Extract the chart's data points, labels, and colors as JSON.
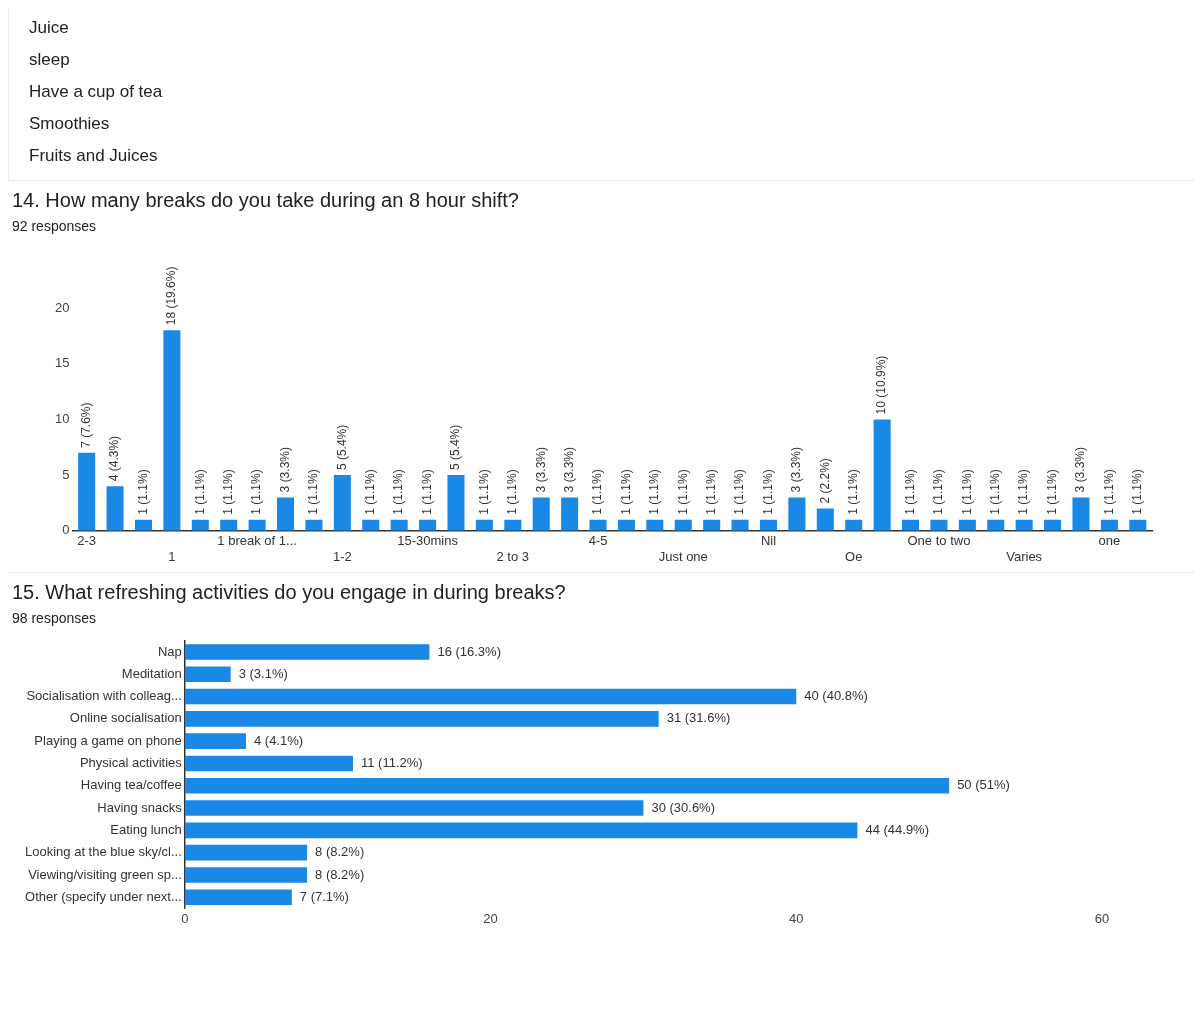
{
  "chart_data": [
    {
      "type": "other",
      "annotations": [
        "Juice",
        "sleep",
        "Have a cup of tea",
        "Smoothies",
        "Fruits and Juices"
      ]
    },
    {
      "type": "bar",
      "title": "14. How many breaks do you take during an 8 hour shift?",
      "subtitle": "92 responses",
      "categories": [
        "2-3",
        null,
        null,
        "1",
        null,
        null,
        "1 break of 1...",
        null,
        null,
        "1-2",
        null,
        null,
        "15-30mins",
        null,
        null,
        "2 to 3",
        null,
        null,
        "4-5",
        null,
        null,
        "Just one",
        null,
        null,
        "Nil",
        null,
        null,
        "Oe",
        null,
        null,
        "One to two",
        null,
        null,
        "Varies",
        null,
        null,
        "one",
        null
      ],
      "values": [
        7,
        4,
        1,
        18,
        1,
        1,
        1,
        3,
        1,
        5,
        1,
        1,
        1,
        5,
        1,
        1,
        3,
        3,
        1,
        1,
        1,
        1,
        1,
        1,
        1,
        3,
        2,
        1,
        10,
        1,
        1,
        1,
        1,
        1,
        1,
        3,
        1,
        1
      ],
      "value_labels": [
        "7 (7.6%)",
        "4 (4.3%)",
        "1 (1.1%)",
        "18 (19.6%)",
        "1 (1.1%)",
        "1 (1.1%)",
        "1 (1.1%)",
        "3 (3.3%)",
        "1 (1.1%)",
        "5 (5.4%)",
        "1 (1.1%)",
        "1 (1.1%)",
        "1 (1.1%)",
        "5 (5.4%)",
        "1 (1.1%)",
        "1 (1.1%)",
        "3 (3.3%)",
        "3 (3.3%)",
        "1 (1.1%)",
        "1 (1.1%)",
        "1 (1.1%)",
        "1 (1.1%)",
        "1 (1.1%)",
        "1 (1.1%)",
        "1 (1.1%)",
        "3 (3.3%)",
        "2 (2.2%)",
        "1 (1.1%)",
        "10 (10.9%)",
        "1 (1.1%)",
        "1 (1.1%)",
        "1 (1.1%)",
        "1 (1.1%)",
        "1 (1.1%)",
        "1 (1.1%)",
        "3 (3.3%)",
        "1 (1.1%)",
        "1 (1.1%)"
      ],
      "color": "#1a88e5",
      "ylim": [
        0,
        20
      ],
      "yticks": [
        0,
        5,
        10,
        15,
        20
      ]
    },
    {
      "type": "bar",
      "orientation": "horizontal",
      "title": "15. What refreshing activities do you engage in during breaks?",
      "subtitle": "98 responses",
      "categories": [
        "Nap",
        "Meditation",
        "Socialisation with colleag...",
        "Online socialisation",
        "Playing a game on phone",
        "Physical activities",
        "Having tea/coffee",
        "Having snacks",
        "Eating lunch",
        "Looking at the blue sky/cl...",
        "Viewing/visiting green sp...",
        "Other (specify under next..."
      ],
      "values": [
        16,
        3,
        40,
        31,
        4,
        11,
        50,
        30,
        44,
        8,
        8,
        7
      ],
      "value_labels": [
        "16 (16.3%)",
        "3 (3.1%)",
        "40 (40.8%)",
        "31 (31.6%)",
        "4 (4.1%)",
        "11 (11.2%)",
        "50 (51%)",
        "30 (30.6%)",
        "44 (44.9%)",
        "8 (8.2%)",
        "8 (8.2%)",
        "7 (7.1%)"
      ],
      "color": "#1a88e5",
      "xlim": [
        0,
        60
      ],
      "xticks": [
        0,
        20,
        40,
        60
      ]
    }
  ]
}
